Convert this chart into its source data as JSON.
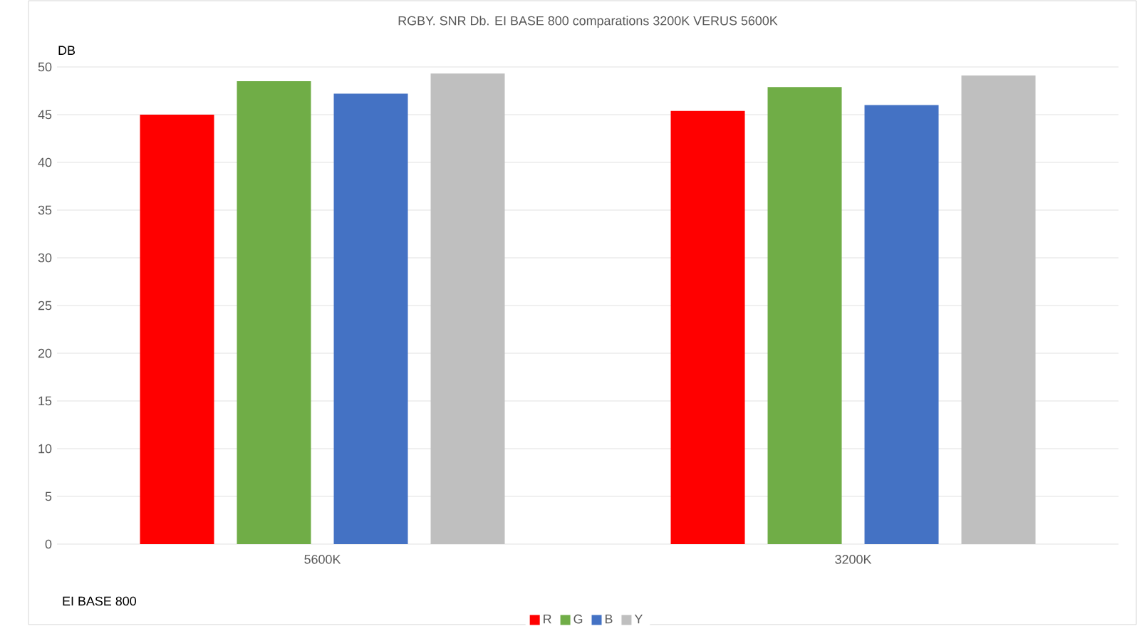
{
  "chart_data": {
    "type": "bar",
    "title": "RGBY. SNR Db. EI BASE 800 comparations 3200K VERUS 5600K",
    "xlabel": "EI BASE 800",
    "ylabel": "DB",
    "categories": [
      "5600K",
      "3200K"
    ],
    "series": [
      {
        "name": "R",
        "color": "#ff0000",
        "values": [
          45.0,
          45.4
        ]
      },
      {
        "name": "G",
        "color": "#70ad47",
        "values": [
          48.5,
          47.9
        ]
      },
      {
        "name": "B",
        "color": "#4472c4",
        "values": [
          47.2,
          46.0
        ]
      },
      {
        "name": "Y",
        "color": "#bfbfbf",
        "values": [
          49.3,
          49.1
        ]
      }
    ],
    "ylim": [
      0,
      50
    ],
    "yticks": [
      0,
      5,
      10,
      15,
      20,
      25,
      30,
      35,
      40,
      45,
      50
    ],
    "grid": "y",
    "legend": "bottom"
  }
}
